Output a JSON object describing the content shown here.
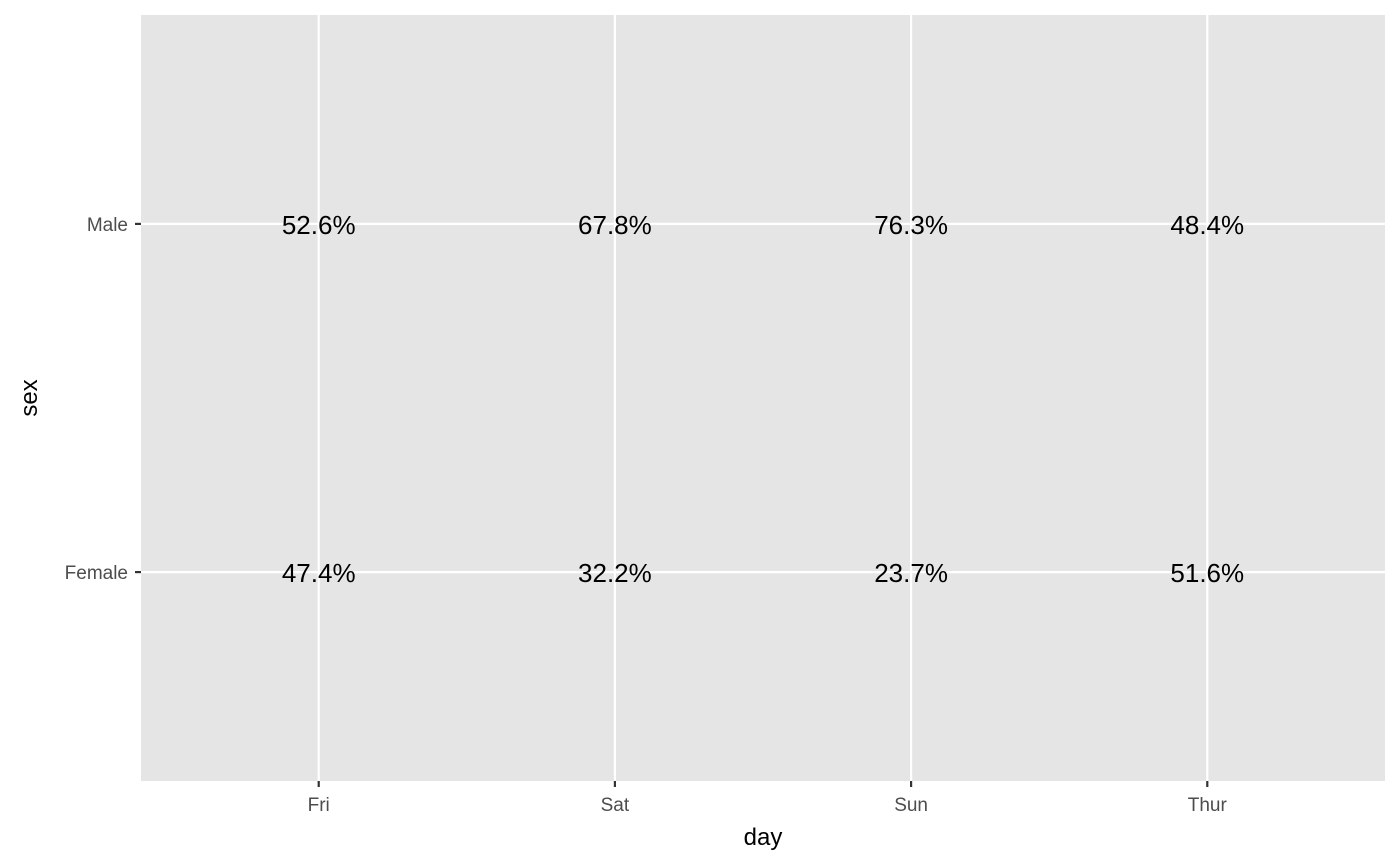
{
  "chart_data": {
    "type": "table",
    "title": "",
    "xlabel": "day",
    "ylabel": "sex",
    "x_categories": [
      "Fri",
      "Sat",
      "Sun",
      "Thur"
    ],
    "y_categories": [
      "Female",
      "Male"
    ],
    "cells": [
      {
        "x": "Fri",
        "y": "Male",
        "value": 52.6,
        "label": "52.6%"
      },
      {
        "x": "Sat",
        "y": "Male",
        "value": 67.8,
        "label": "67.8%"
      },
      {
        "x": "Sun",
        "y": "Male",
        "value": 76.3,
        "label": "76.3%"
      },
      {
        "x": "Thur",
        "y": "Male",
        "value": 48.4,
        "label": "48.4%"
      },
      {
        "x": "Fri",
        "y": "Female",
        "value": 47.4,
        "label": "47.4%"
      },
      {
        "x": "Sat",
        "y": "Female",
        "value": 32.2,
        "label": "32.2%"
      },
      {
        "x": "Sun",
        "y": "Female",
        "value": 23.7,
        "label": "23.7%"
      },
      {
        "x": "Thur",
        "y": "Female",
        "value": 51.6,
        "label": "51.6%"
      }
    ],
    "grid": true,
    "legend": "none",
    "colors": {
      "panel_background": "#e5e5e5",
      "grid_line": "#ffffff",
      "tick_mark": "#333333",
      "tick_label": "#4d4d4d",
      "text": "#000000"
    }
  }
}
